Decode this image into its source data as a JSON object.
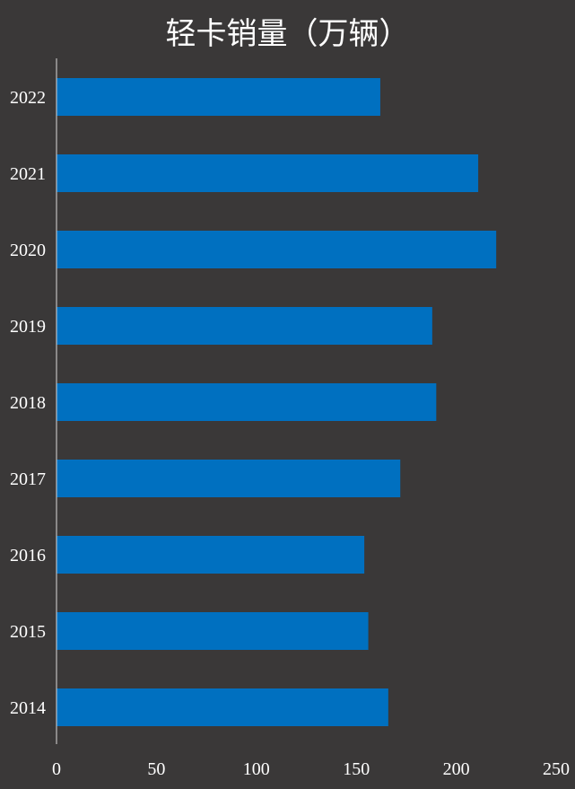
{
  "chart_data": {
    "type": "bar",
    "orientation": "horizontal",
    "title": "轻卡销量（万辆）",
    "xlabel": "",
    "ylabel": "",
    "categories": [
      "2022",
      "2021",
      "2020",
      "2019",
      "2018",
      "2017",
      "2016",
      "2015",
      "2014"
    ],
    "values": [
      162,
      211,
      220,
      188,
      190,
      172,
      154,
      156,
      166
    ],
    "xlim": [
      0,
      250
    ],
    "xticks": [
      "0",
      "50",
      "100",
      "150",
      "200",
      "250"
    ],
    "grid": false,
    "legend": "none",
    "colors": {
      "bar": "#0070c0",
      "background": "#3a3838",
      "axis": "#d9d9d9",
      "text": "#ffffff"
    }
  }
}
